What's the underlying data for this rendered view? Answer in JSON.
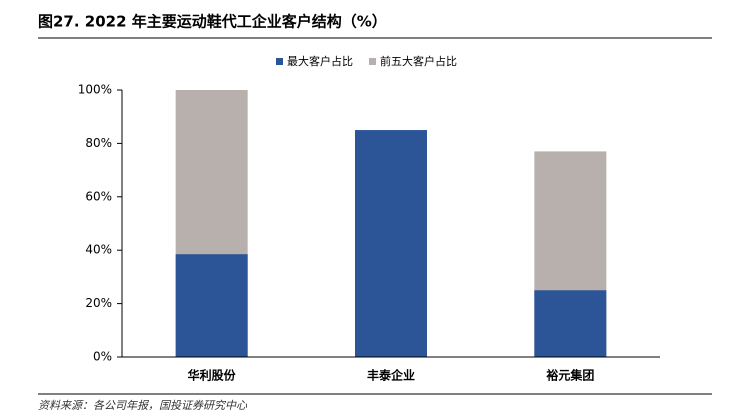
{
  "chart_data": {
    "type": "bar",
    "overlap": true,
    "title": "图27. 2022 年主要运动鞋代工企业客户结构（%）",
    "source": "资料来源：各公司年报，国投证券研究中心",
    "categories": [
      "华利股份",
      "丰泰企业",
      "裕元集团"
    ],
    "series": [
      {
        "name": "前五大客户占比",
        "color": "#b8b0ad",
        "values": [
          100,
          null,
          77
        ]
      },
      {
        "name": "最大客户占比",
        "color": "#2c5597",
        "values": [
          38.5,
          85,
          25
        ]
      }
    ],
    "legend_order": [
      1,
      0
    ],
    "ylim": [
      0,
      100
    ],
    "yticks": [
      {
        "value": 0,
        "label": "0%"
      },
      {
        "value": 20,
        "label": "20%"
      },
      {
        "value": 40,
        "label": "40%"
      },
      {
        "value": 60,
        "label": "60%"
      },
      {
        "value": 80,
        "label": "80%"
      },
      {
        "value": 100,
        "label": "100%"
      }
    ],
    "grid": false
  }
}
